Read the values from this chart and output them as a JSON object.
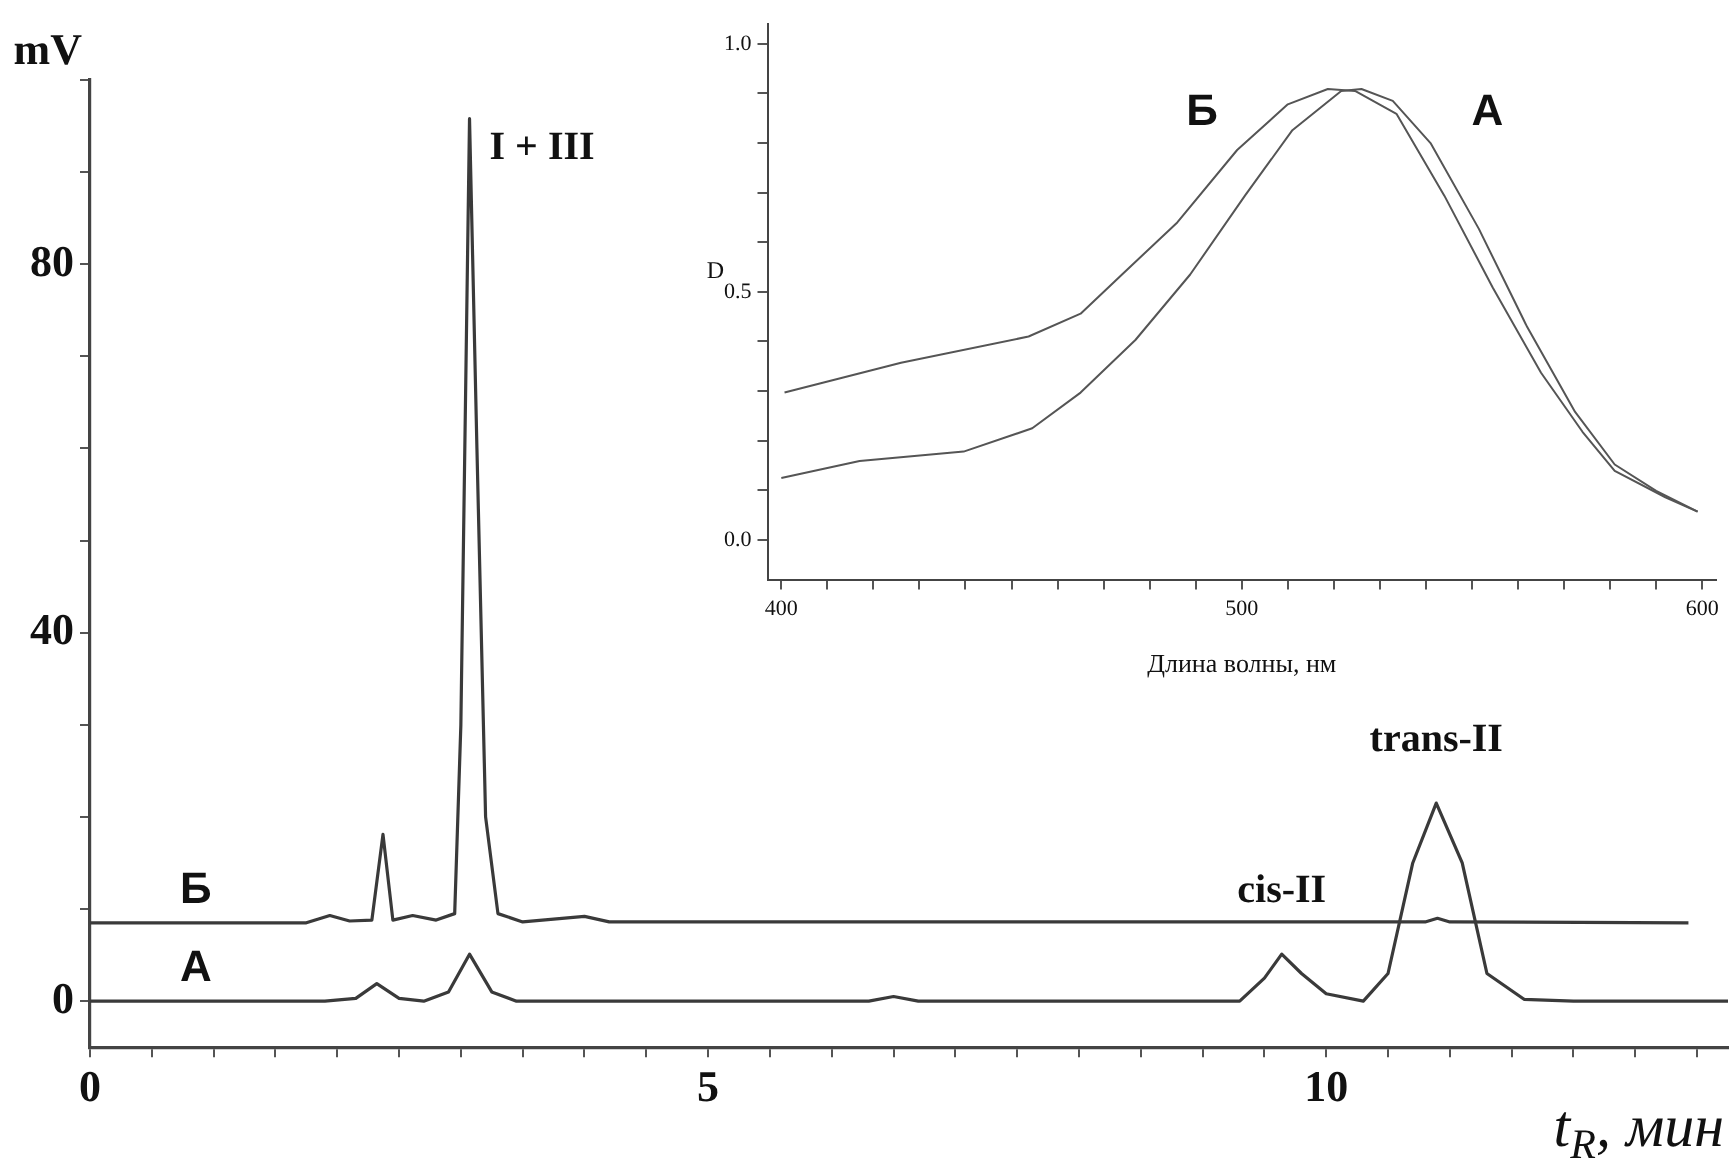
{
  "chart_data": [
    {
      "type": "line",
      "xlabel": "t$_{R}$, мин",
      "ylabel": "mV",
      "xlim": [
        0,
        13.25
      ],
      "ylim": [
        -5,
        100
      ],
      "xticks": [
        0,
        {
          "value": 0.5,
          "label": null
        },
        {
          "value": 1,
          "label": null
        },
        {
          "value": 1.5,
          "label": null
        },
        {
          "value": 2,
          "label": null
        },
        {
          "value": 2.5,
          "label": null
        },
        {
          "value": 3,
          "label": null
        },
        {
          "value": 3.5,
          "label": null
        },
        {
          "value": 4,
          "label": null
        },
        {
          "value": 4.5,
          "label": null
        },
        5,
        {
          "value": 5.5,
          "label": null
        },
        {
          "value": 6,
          "label": null
        },
        {
          "value": 6.5,
          "label": null
        },
        {
          "value": 7,
          "label": null
        },
        {
          "value": 7.5,
          "label": null
        },
        {
          "value": 8,
          "label": null
        },
        {
          "value": 8.5,
          "label": null
        },
        {
          "value": 9,
          "label": null
        },
        {
          "value": 9.5,
          "label": null
        },
        10,
        {
          "value": 10.5,
          "label": null
        },
        {
          "value": 11,
          "label": null
        },
        {
          "value": 11.5,
          "label": null
        },
        {
          "value": 12,
          "label": null
        },
        {
          "value": 12.5,
          "label": null
        },
        {
          "value": 13,
          "label": null
        }
      ],
      "yticks": [
        0,
        {
          "value": 10,
          "label": null
        },
        {
          "value": 20,
          "label": null
        },
        {
          "value": 30,
          "label": null
        },
        40,
        {
          "value": 50,
          "label": null
        },
        {
          "value": 60,
          "label": null
        },
        {
          "value": 70,
          "label": null
        },
        80,
        {
          "value": 90,
          "label": null
        },
        {
          "value": 100,
          "label": null
        }
      ],
      "grid": false,
      "legend": false,
      "marker": "none",
      "line_style": "solid",
      "series": [
        {
          "name": "А",
          "color": "#3a3a3a",
          "x": [
            0,
            1.9,
            2.15,
            2.32,
            2.5,
            2.7,
            2.9,
            3.07,
            3.25,
            3.45,
            6.3,
            6.5,
            6.7,
            9.3,
            9.5,
            9.64,
            9.8,
            10,
            10.3,
            10.5,
            10.7,
            10.89,
            11.1,
            11.3,
            11.6,
            12,
            13.25
          ],
          "values": [
            0,
            0,
            0.3,
            1.9,
            0.3,
            0,
            1,
            5.1,
            1,
            0,
            0,
            0.5,
            0,
            0,
            2.5,
            5.1,
            3,
            0.8,
            0,
            3,
            15,
            21.5,
            15,
            3,
            0.2,
            0,
            0
          ]
        },
        {
          "name": "Б",
          "color": "#3a3a3a",
          "x": [
            0,
            1.75,
            1.94,
            2.1,
            2.28,
            2.37,
            2.45,
            2.61,
            2.8,
            2.95,
            3,
            3.07,
            3.13,
            3.2,
            3.3,
            3.5,
            4,
            4.2,
            10.8,
            10.9,
            11,
            12.93
          ],
          "values": [
            8.5,
            8.5,
            9.3,
            8.7,
            8.8,
            18.1,
            8.8,
            9.3,
            8.8,
            9.5,
            30,
            95.8,
            60,
            20,
            9.5,
            8.6,
            9.2,
            8.6,
            8.6,
            9,
            8.6,
            8.5
          ]
        }
      ],
      "annotations": [
        {
          "text": "I + III",
          "x": 3.07,
          "y": 95.8
        },
        {
          "text": "cis-II",
          "x": 9.64,
          "y": 5.1
        },
        {
          "text": "trans-II",
          "x": 10.89,
          "y": 21.5
        }
      ]
    },
    {
      "type": "line",
      "xlabel": "Длина волны, нм",
      "ylabel": "D",
      "xlim": [
        397,
        603
      ],
      "ylim": [
        -0.08,
        1.04
      ],
      "xticks": [
        400,
        {
          "value": 410,
          "label": null
        },
        {
          "value": 420,
          "label": null
        },
        {
          "value": 430,
          "label": null
        },
        {
          "value": 440,
          "label": null
        },
        {
          "value": 450,
          "label": null
        },
        {
          "value": 460,
          "label": null
        },
        {
          "value": 470,
          "label": null
        },
        {
          "value": 480,
          "label": null
        },
        {
          "value": 490,
          "label": null
        },
        500,
        {
          "value": 510,
          "label": null
        },
        {
          "value": 520,
          "label": null
        },
        {
          "value": 530,
          "label": null
        },
        {
          "value": 540,
          "label": null
        },
        {
          "value": 550,
          "label": null
        },
        {
          "value": 560,
          "label": null
        },
        {
          "value": 570,
          "label": null
        },
        {
          "value": 580,
          "label": null
        },
        {
          "value": 590,
          "label": null
        },
        600
      ],
      "yticks": [
        {
          "value": 0,
          "label": "0.0"
        },
        {
          "value": 0.1,
          "label": null
        },
        {
          "value": 0.2,
          "label": null
        },
        {
          "value": 0.3,
          "label": null
        },
        {
          "value": 0.4,
          "label": null
        },
        {
          "value": 0.5,
          "label": "0.5"
        },
        {
          "value": 0.6,
          "label": null
        },
        {
          "value": 0.7,
          "label": null
        },
        {
          "value": 0.8,
          "label": null
        },
        {
          "value": 0.9,
          "label": null
        },
        {
          "value": 1,
          "label": "1.0"
        }
      ],
      "grid": false,
      "legend": false,
      "marker": "none",
      "line_style": "solid",
      "series": [
        {
          "name": "А",
          "color": "#555555",
          "x": [
            400,
            417,
            439.6,
            454.5,
            465,
            476.9,
            488.8,
            500.7,
            511,
            521.6,
            526,
            532.8,
            541,
            551.5,
            562,
            572.4,
            581,
            590,
            599
          ],
          "values": [
            0.125,
            0.159,
            0.178,
            0.225,
            0.297,
            0.403,
            0.535,
            0.694,
            0.826,
            0.905,
            0.909,
            0.885,
            0.8,
            0.627,
            0.429,
            0.258,
            0.152,
            0.099,
            0.057
          ]
        },
        {
          "name": "Б",
          "color": "#555555",
          "x": [
            400.7,
            426,
            453.7,
            465,
            474,
            486,
            499,
            510,
            518.7,
            524.6,
            533.6,
            544,
            554.5,
            565,
            574,
            581,
            592,
            599
          ],
          "values": [
            0.297,
            0.357,
            0.41,
            0.456,
            0.535,
            0.64,
            0.786,
            0.878,
            0.909,
            0.905,
            0.859,
            0.694,
            0.509,
            0.337,
            0.218,
            0.139,
            0.086,
            0.057
          ]
        }
      ]
    }
  ]
}
